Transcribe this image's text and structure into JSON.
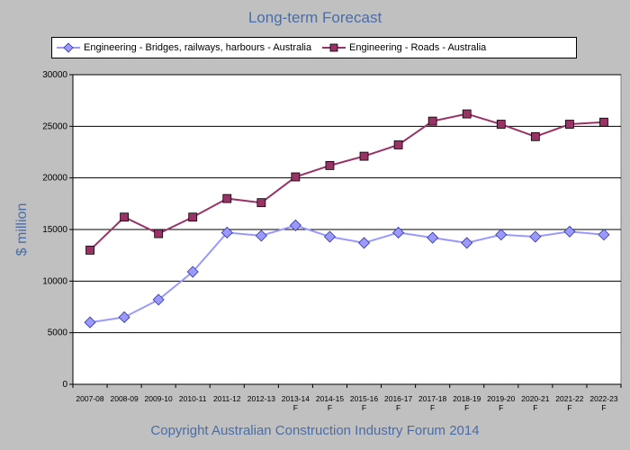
{
  "chart_data": {
    "type": "line",
    "title": "Long-term Forecast",
    "ylabel": "$ million",
    "xlabel": "",
    "ylim": [
      0,
      30000
    ],
    "yticks": [
      0,
      5000,
      10000,
      15000,
      20000,
      25000,
      30000
    ],
    "grid": true,
    "legend_position": "top",
    "categories": [
      [
        "2007-08"
      ],
      [
        "2008-09"
      ],
      [
        "2009-10"
      ],
      [
        "2010-11"
      ],
      [
        "2011-12"
      ],
      [
        "2012-13"
      ],
      [
        "2013-14",
        "F"
      ],
      [
        "2014-15",
        "F"
      ],
      [
        "2015-16",
        "F"
      ],
      [
        "2016-17",
        "F"
      ],
      [
        "2017-18",
        "F"
      ],
      [
        "2018-19",
        "F"
      ],
      [
        "2019-20",
        "F"
      ],
      [
        "2020-21",
        "F"
      ],
      [
        "2021-22",
        "F"
      ],
      [
        "2022-23",
        "F"
      ]
    ],
    "series": [
      {
        "name": "Engineering - Bridges, railways, harbours  - Australia",
        "color": "#9999ff",
        "line_color": "#9999ff",
        "marker": "diamond",
        "values": [
          6000,
          6500,
          8200,
          10900,
          14700,
          14400,
          15400,
          14300,
          13700,
          14700,
          14200,
          13700,
          14500,
          14300,
          14800,
          14500
        ]
      },
      {
        "name": "Engineering - Roads - Australia",
        "color": "#993366",
        "line_color": "#993366",
        "marker": "square",
        "values": [
          13000,
          16200,
          14600,
          16200,
          18000,
          17600,
          20100,
          21200,
          22100,
          23200,
          25500,
          26200,
          25200,
          24000,
          25200,
          25400
        ]
      }
    ]
  },
  "footer": {
    "copyright": "Copyright Australian Construction Industry Forum 2014"
  }
}
